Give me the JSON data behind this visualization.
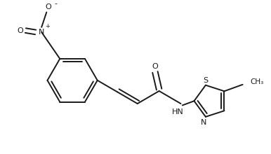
{
  "background_color": "#ffffff",
  "line_color": "#1a1a1a",
  "line_width": 1.4,
  "figsize": [
    3.86,
    2.2
  ],
  "dpi": 100,
  "xlim": [
    0,
    7.72
  ],
  "ylim": [
    0,
    4.4
  ]
}
